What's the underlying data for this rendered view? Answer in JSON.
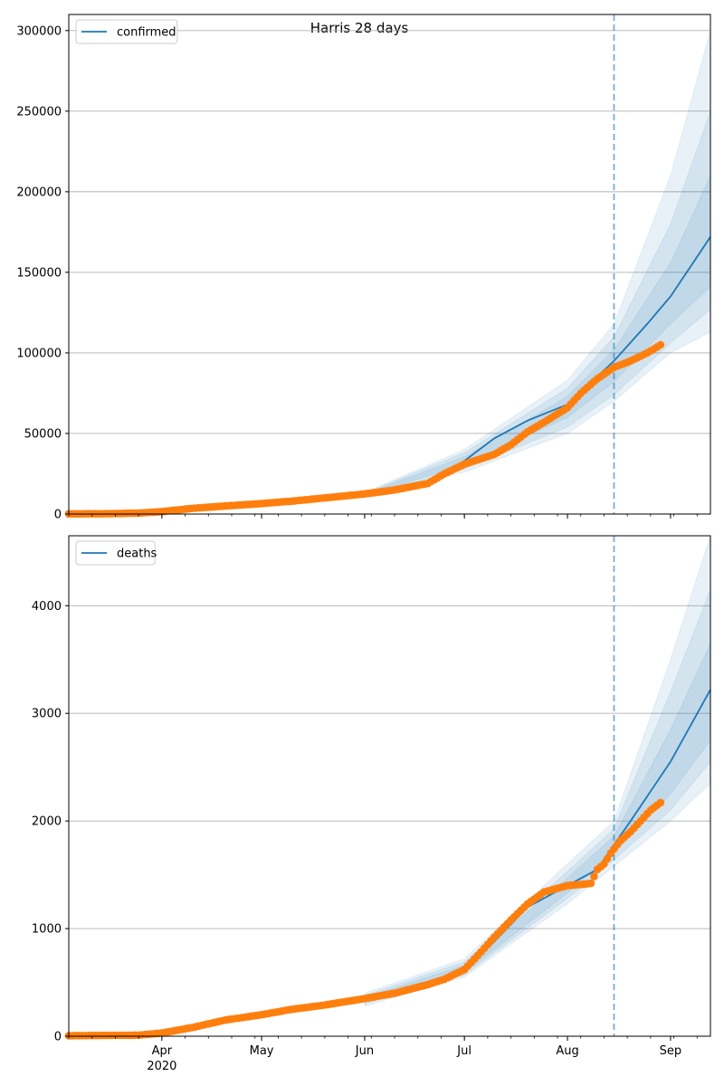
{
  "figure": {
    "title": "Harris 28 days"
  },
  "colors": {
    "model_line": "#1f77b4",
    "observed_points": "#ff7f0e",
    "band": "#1f77b4",
    "grid": "#b0b0b0",
    "spine": "#000000",
    "vline": "#1f77b4"
  },
  "chart_data": [
    {
      "type": "line",
      "title": "",
      "xlabel": "",
      "ylabel": "",
      "x_axis": {
        "kind": "date",
        "range": [
          "2020-03-04",
          "2020-09-13"
        ],
        "tick_labels": [
          {
            "date": "2020-04-01",
            "label": "Apr",
            "sub": "2020"
          },
          {
            "date": "2020-05-01",
            "label": "May",
            "sub": ""
          },
          {
            "date": "2020-06-01",
            "label": "Jun",
            "sub": ""
          },
          {
            "date": "2020-07-01",
            "label": "Jul",
            "sub": ""
          },
          {
            "date": "2020-08-01",
            "label": "Aug",
            "sub": ""
          },
          {
            "date": "2020-09-01",
            "label": "Sep",
            "sub": ""
          }
        ],
        "tick_labels_visible": false
      },
      "ylim": [
        0,
        310000
      ],
      "y_ticks": [
        0,
        50000,
        100000,
        150000,
        200000,
        250000,
        300000
      ],
      "y_tick_labels": [
        "0",
        "50000",
        "100000",
        "150000",
        "200000",
        "250000",
        "300000"
      ],
      "grid": "horizontal",
      "legend": {
        "placement": "top-left",
        "entries": [
          "confirmed"
        ]
      },
      "forecast_start": "2020-08-15",
      "series": [
        {
          "name": "confirmed",
          "kind": "model-fit",
          "x": [
            "2020-03-04",
            "2020-04-01",
            "2020-05-01",
            "2020-06-01",
            "2020-06-20",
            "2020-07-01",
            "2020-07-10",
            "2020-07-20",
            "2020-08-01",
            "2020-08-15",
            "2020-08-25",
            "2020-09-01",
            "2020-09-13"
          ],
          "y": [
            500,
            2000,
            6500,
            12000,
            19000,
            33000,
            47000,
            58000,
            68000,
            95000,
            118000,
            135000,
            172000
          ]
        },
        {
          "name": "",
          "kind": "observed",
          "x": [
            "2020-03-04",
            "2020-03-15",
            "2020-03-25",
            "2020-04-01",
            "2020-04-10",
            "2020-04-20",
            "2020-05-01",
            "2020-05-10",
            "2020-05-20",
            "2020-06-01",
            "2020-06-10",
            "2020-06-20",
            "2020-06-25",
            "2020-07-01",
            "2020-07-10",
            "2020-07-15",
            "2020-07-20",
            "2020-07-25",
            "2020-08-01",
            "2020-08-05",
            "2020-08-10",
            "2020-08-15",
            "2020-08-20",
            "2020-08-25",
            "2020-08-29"
          ],
          "y": [
            100,
            200,
            600,
            1500,
            3500,
            5000,
            6500,
            8000,
            10000,
            12500,
            15000,
            19000,
            25000,
            31000,
            37000,
            43000,
            51000,
            57000,
            66000,
            75000,
            84000,
            91000,
            95000,
            100000,
            105000
          ]
        }
      ],
      "bands": [
        {
          "label": "",
          "x": [
            "2020-06-01",
            "2020-07-01",
            "2020-08-01",
            "2020-08-15",
            "2020-09-01",
            "2020-09-13"
          ],
          "low": [
            11500,
            30500,
            60000,
            82000,
            118000,
            141000
          ],
          "high": [
            12500,
            35500,
            73000,
            102000,
            156000,
            210000
          ]
        },
        {
          "label": "",
          "x": [
            "2020-06-01",
            "2020-07-01",
            "2020-08-01",
            "2020-08-15",
            "2020-09-01",
            "2020-09-13"
          ],
          "low": [
            11000,
            28000,
            54000,
            74000,
            106000,
            127000
          ],
          "high": [
            13000,
            38000,
            78000,
            110000,
            180000,
            250000
          ]
        },
        {
          "label": "",
          "x": [
            "2020-06-01",
            "2020-07-01",
            "2020-08-01",
            "2020-08-15",
            "2020-09-01",
            "2020-09-13"
          ],
          "low": [
            10500,
            26000,
            50000,
            70000,
            100000,
            113000
          ],
          "high": [
            13500,
            40000,
            83000,
            118000,
            210000,
            300000
          ]
        }
      ]
    },
    {
      "type": "line",
      "title": "",
      "xlabel": "",
      "ylabel": "",
      "x_axis": {
        "kind": "date",
        "range": [
          "2020-03-04",
          "2020-09-13"
        ],
        "tick_labels": [
          {
            "date": "2020-04-01",
            "label": "Apr",
            "sub": "2020"
          },
          {
            "date": "2020-05-01",
            "label": "May",
            "sub": ""
          },
          {
            "date": "2020-06-01",
            "label": "Jun",
            "sub": ""
          },
          {
            "date": "2020-07-01",
            "label": "Jul",
            "sub": ""
          },
          {
            "date": "2020-08-01",
            "label": "Aug",
            "sub": ""
          },
          {
            "date": "2020-09-01",
            "label": "Sep",
            "sub": ""
          }
        ],
        "tick_labels_visible": true
      },
      "ylim": [
        0,
        4650
      ],
      "y_ticks": [
        0,
        1000,
        2000,
        3000,
        4000
      ],
      "y_tick_labels": [
        "0",
        "1000",
        "2000",
        "3000",
        "4000"
      ],
      "grid": "horizontal",
      "legend": {
        "placement": "top-left",
        "entries": [
          "deaths"
        ]
      },
      "forecast_start": "2020-08-15",
      "series": [
        {
          "name": "deaths",
          "kind": "model-fit",
          "x": [
            "2020-03-04",
            "2020-03-25",
            "2020-04-01",
            "2020-05-01",
            "2020-06-01",
            "2020-06-25",
            "2020-07-01",
            "2020-07-10",
            "2020-07-20",
            "2020-08-01",
            "2020-08-10",
            "2020-08-15",
            "2020-08-20",
            "2020-09-01",
            "2020-09-13"
          ],
          "y": [
            5,
            10,
            30,
            200,
            340,
            520,
            620,
            880,
            1200,
            1400,
            1550,
            1780,
            2000,
            2550,
            3220
          ]
        },
        {
          "name": "",
          "kind": "observed",
          "x": [
            "2020-03-04",
            "2020-03-25",
            "2020-04-01",
            "2020-04-10",
            "2020-04-20",
            "2020-05-01",
            "2020-05-10",
            "2020-05-20",
            "2020-06-01",
            "2020-06-10",
            "2020-06-20",
            "2020-06-25",
            "2020-07-01",
            "2020-07-05",
            "2020-07-10",
            "2020-07-15",
            "2020-07-20",
            "2020-07-25",
            "2020-08-01",
            "2020-08-05",
            "2020-08-08",
            "2020-08-10",
            "2020-08-12",
            "2020-08-14",
            "2020-08-17",
            "2020-08-20",
            "2020-08-23",
            "2020-08-26",
            "2020-08-29"
          ],
          "y": [
            5,
            10,
            30,
            80,
            150,
            200,
            250,
            290,
            350,
            400,
            480,
            530,
            620,
            750,
            920,
            1080,
            1230,
            1340,
            1400,
            1410,
            1420,
            1550,
            1600,
            1700,
            1820,
            1900,
            2000,
            2100,
            2170
          ]
        }
      ],
      "bands": [
        {
          "label": "",
          "x": [
            "2020-06-01",
            "2020-07-01",
            "2020-08-01",
            "2020-08-15",
            "2020-09-01",
            "2020-09-13"
          ],
          "low": [
            320,
            590,
            1330,
            1700,
            2250,
            2750
          ],
          "high": [
            360,
            660,
            1470,
            1860,
            2850,
            3650
          ]
        },
        {
          "label": "",
          "x": [
            "2020-06-01",
            "2020-07-01",
            "2020-08-01",
            "2020-08-15",
            "2020-09-01",
            "2020-09-13"
          ],
          "low": [
            300,
            570,
            1280,
            1640,
            2100,
            2550
          ],
          "high": [
            380,
            690,
            1530,
            1930,
            3200,
            4150
          ]
        },
        {
          "label": "",
          "x": [
            "2020-06-01",
            "2020-07-01",
            "2020-08-01",
            "2020-08-15",
            "2020-09-01",
            "2020-09-13"
          ],
          "low": [
            280,
            550,
            1230,
            1580,
            2000,
            2350
          ],
          "high": [
            400,
            720,
            1600,
            2000,
            3500,
            4650
          ]
        }
      ]
    }
  ]
}
